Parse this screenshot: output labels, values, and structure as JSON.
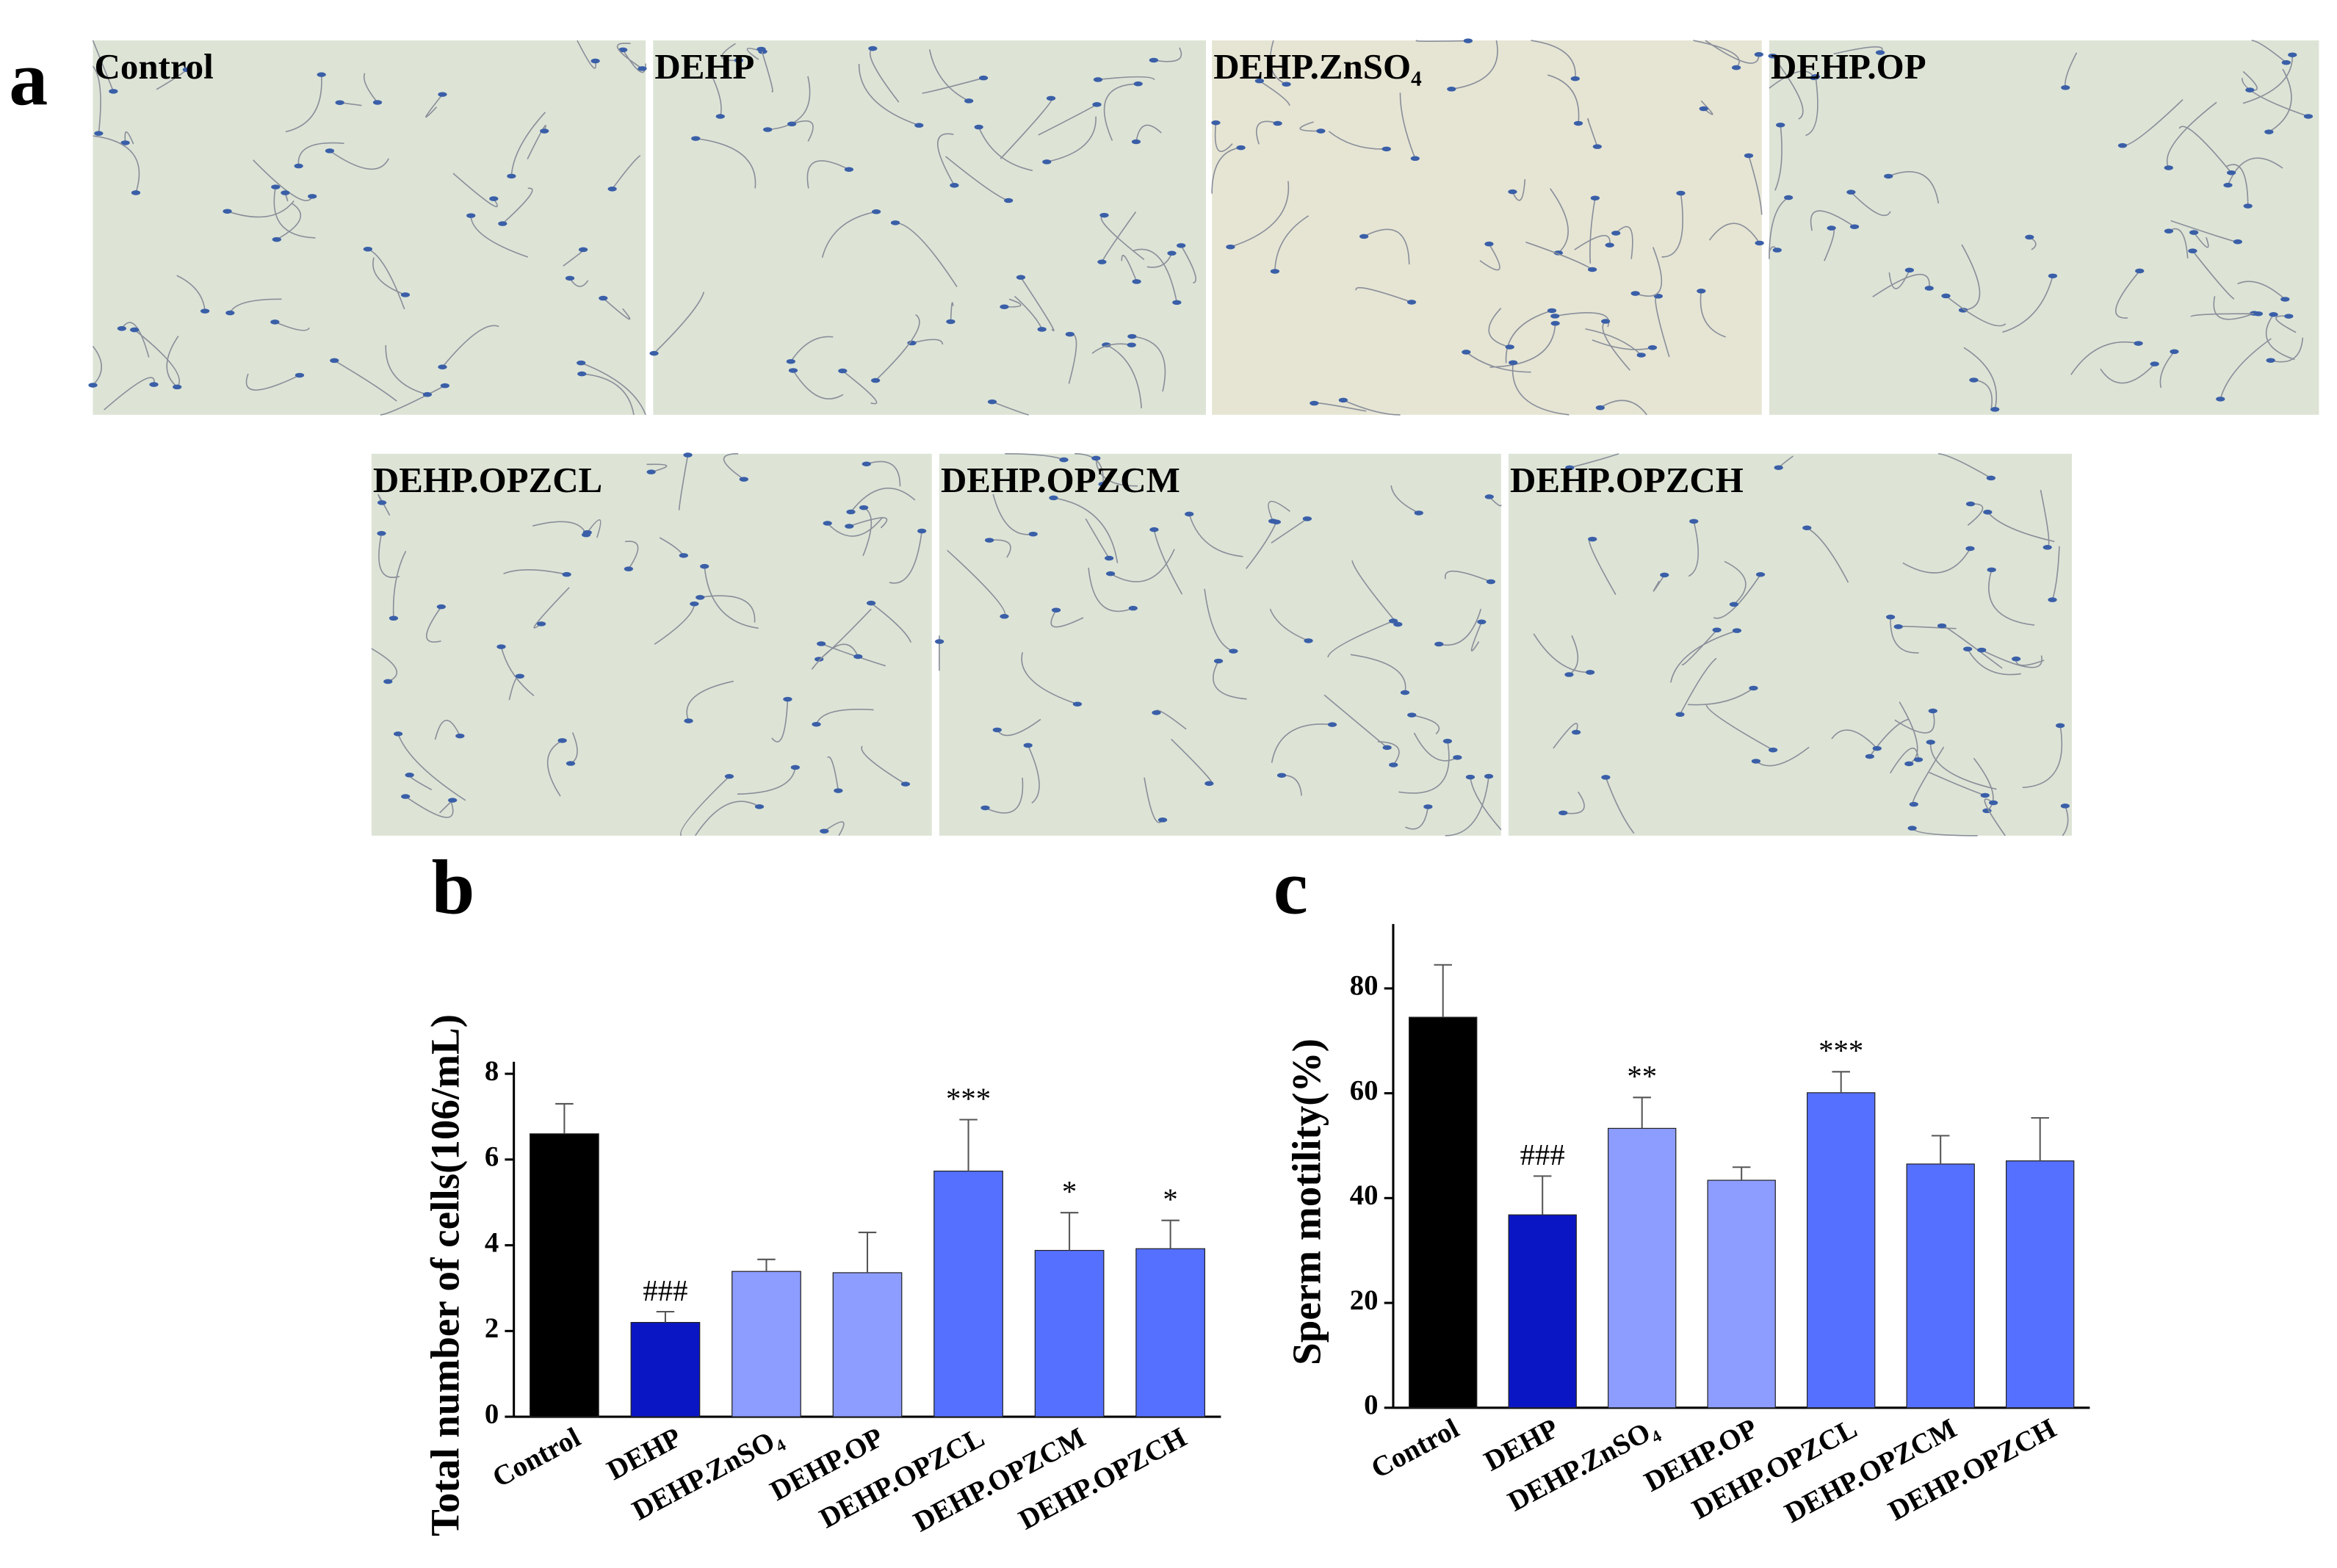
{
  "panel_a": {
    "label": "a",
    "images": [
      {
        "caption": "Control"
      },
      {
        "caption": "DEHP"
      },
      {
        "caption": "DEHP.ZnSO₄"
      },
      {
        "caption": "DEHP.OP"
      },
      {
        "caption": "DEHP.OPZCL"
      },
      {
        "caption": "DEHP.OPZCM"
      },
      {
        "caption": "DEHP.OPZCH"
      }
    ]
  },
  "chart_data": [
    {
      "type": "bar",
      "panel_label": "b",
      "ylabel": "Total number of cells(106/mL)",
      "categories": [
        "Control",
        "DEHP",
        "DEHP.ZnSO₄",
        "DEHP.OP",
        "DEHP.OPZCL",
        "DEHP.OPZCM",
        "DEHP.OPZCH"
      ],
      "values": [
        6.6,
        2.2,
        3.39,
        3.36,
        5.73,
        3.88,
        3.92
      ],
      "errors": [
        0.7,
        0.25,
        0.28,
        0.94,
        1.2,
        0.88,
        0.66
      ],
      "annotations": [
        null,
        "###",
        null,
        null,
        "***",
        "*",
        "*"
      ],
      "colors": [
        "#000000",
        "#0a16c4",
        "#8c9cff",
        "#8c9cff",
        "#5570ff",
        "#5570ff",
        "#5570ff"
      ],
      "ylim": [
        0,
        8
      ],
      "yticks": [
        0,
        2,
        4,
        6,
        8
      ]
    },
    {
      "type": "bar",
      "panel_label": "c",
      "ylabel": "Sperm motility(%)",
      "categories": [
        "Control",
        "DEHP",
        "DEHP.ZnSO₄",
        "DEHP.OP",
        "DEHP.OPZCL",
        "DEHP.OPZCM",
        "DEHP.OPZCH"
      ],
      "values": [
        74.5,
        36.8,
        53.3,
        43.4,
        60.1,
        46.5,
        47.1
      ],
      "errors": [
        10,
        7.4,
        5.9,
        2.5,
        4,
        5.4,
        8.2
      ],
      "annotations": [
        null,
        "###",
        "**",
        null,
        "***",
        null,
        null
      ],
      "colors": [
        "#000000",
        "#0a16c4",
        "#8c9cff",
        "#8c9cff",
        "#5570ff",
        "#5570ff",
        "#5570ff"
      ],
      "ylim": [
        0,
        90
      ],
      "yticks": [
        0,
        20,
        40,
        60,
        80
      ]
    }
  ]
}
